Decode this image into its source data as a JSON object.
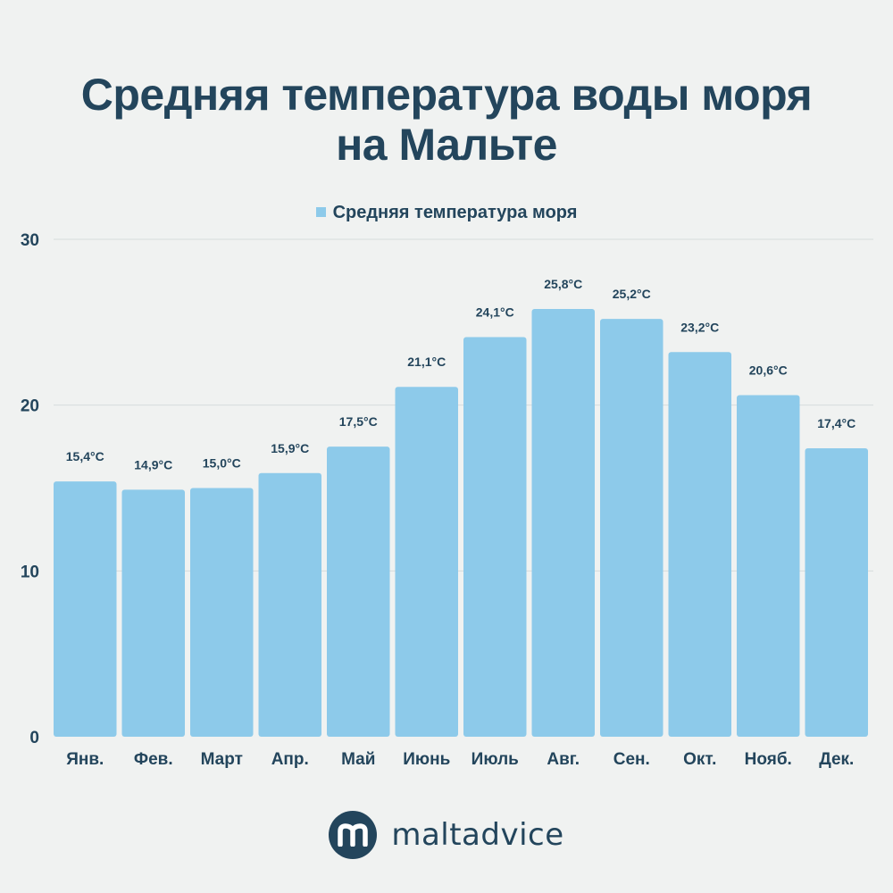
{
  "chart_data": {
    "type": "bar",
    "title_lines": [
      "Средняя температура воды моря",
      "на Мальте"
    ],
    "legend": [
      "Средняя температура моря"
    ],
    "categories": [
      "Янв.",
      "Фев.",
      "Март",
      "Апр.",
      "Май",
      "Июнь",
      "Июль",
      "Авг.",
      "Сен.",
      "Окт.",
      "Нояб.",
      "Дек."
    ],
    "series": [
      {
        "name": "Средняя температура моря",
        "values": [
          15.4,
          14.9,
          15.0,
          15.9,
          17.5,
          21.1,
          24.1,
          25.8,
          25.2,
          23.2,
          20.6,
          17.4
        ],
        "labels": [
          "15,4°C",
          "14,9°C",
          "15,0°C",
          "15,9°C",
          "17,5°C",
          "21,1°C",
          "24,1°C",
          "25,8°C",
          "25,2°C",
          "23,2°C",
          "20,6°C",
          "17,4°C"
        ]
      }
    ],
    "yticks": [
      0,
      10,
      20,
      30
    ],
    "ylim": [
      0,
      30
    ],
    "grid": true,
    "xlabel": "",
    "ylabel": ""
  },
  "colors": {
    "bar": "#8dcaea",
    "text": "#23455c",
    "grid": "#d6dcdc",
    "background": "#f0f2f1"
  },
  "footer": {
    "brand": "maltadvice",
    "logo_letter": "m"
  }
}
